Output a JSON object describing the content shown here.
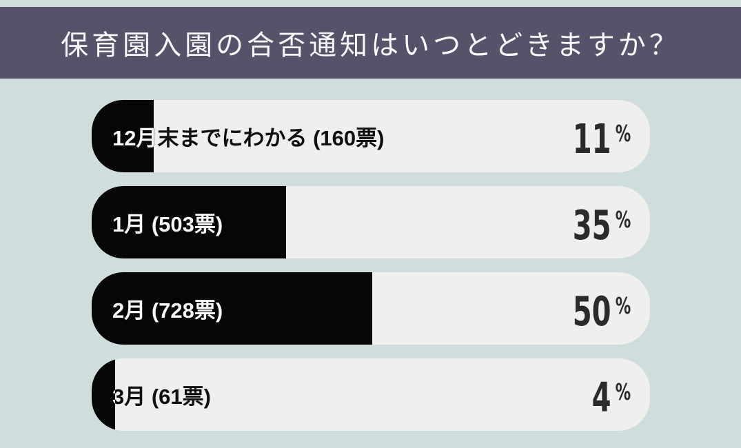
{
  "header": {
    "title": "保育園入園の合否通知はいつとどきますか？"
  },
  "colors": {
    "page_background": "#cfdedd",
    "header_background": "#575269",
    "title_text": "#faf9fb",
    "bar_track": "#efefee",
    "bar_fill": "#060606",
    "percent_text": "#2b2b2b"
  },
  "chart_data": {
    "type": "bar",
    "orientation": "horizontal",
    "title": "保育園入園の合否通知はいつとどきますか？",
    "unit": "%",
    "categories": [
      "12月末までにわかる",
      "1月",
      "2月",
      "3月"
    ],
    "votes": [
      160,
      503,
      728,
      61
    ],
    "percents": [
      11,
      35,
      50,
      4
    ],
    "bars": [
      {
        "label": "12月末までにわかる (160票)",
        "category": "12月末までにわかる",
        "votes": 160,
        "percent_label": "11",
        "fill_percent": 11.1
      },
      {
        "label": "1月 (503票)",
        "category": "1月",
        "votes": 503,
        "percent_label": "35",
        "fill_percent": 34.8
      },
      {
        "label": "2月 (728票)",
        "category": "2月",
        "votes": 728,
        "percent_label": "50",
        "fill_percent": 50.2
      },
      {
        "label": "3月 (61票)",
        "category": "3月",
        "votes": 61,
        "percent_label": "4",
        "fill_percent": 4.2
      }
    ]
  }
}
